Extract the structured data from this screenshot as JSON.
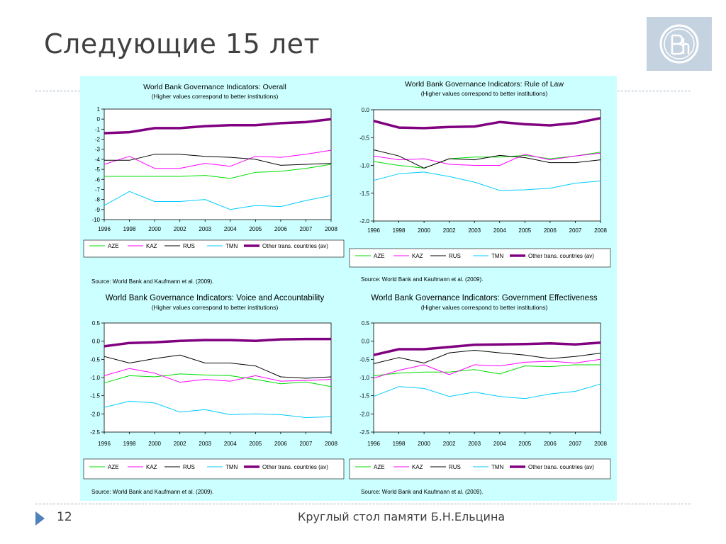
{
  "slide": {
    "title": "Следующие 15 лет",
    "page_number": "12",
    "footer": "Круглый стол памяти Б.Н.Ельцина"
  },
  "colors": {
    "panel": "#ccffff",
    "AZE": "#00dd00",
    "KAZ": "#ff00ff",
    "RUS": "#000000",
    "TMN": "#00ccff",
    "AV": "#800080"
  },
  "chart_data": [
    {
      "type": "line",
      "title": "World Bank Governance Indicators: Overall",
      "subtitle": "(Higher values correspond to better institutions)",
      "x": [
        "1996",
        "1998",
        "2000",
        "2002",
        "2003",
        "2004",
        "2005",
        "2006",
        "2007",
        "2008"
      ],
      "ylim": [
        -10,
        1
      ],
      "yticks": [
        "1",
        "0",
        "-1",
        "-2",
        "-3",
        "-4",
        "-5",
        "-6",
        "-7",
        "-8",
        "-9",
        "-10"
      ],
      "source": "Source: World Bank and Kaufmann et al. (2009).",
      "series": [
        {
          "name": "AZE",
          "values": [
            -5.7,
            -5.7,
            -5.7,
            -5.7,
            -5.6,
            -5.9,
            -5.3,
            -5.2,
            -4.9,
            -4.5
          ]
        },
        {
          "name": "KAZ",
          "values": [
            -4.5,
            -3.7,
            -4.9,
            -4.9,
            -4.4,
            -4.7,
            -3.7,
            -3.8,
            -3.5,
            -3.1
          ]
        },
        {
          "name": "RUS",
          "values": [
            -4.1,
            -4.1,
            -3.5,
            -3.5,
            -3.7,
            -3.8,
            -4.0,
            -4.6,
            -4.5,
            -4.4
          ]
        },
        {
          "name": "TMN",
          "values": [
            -8.6,
            -7.2,
            -8.2,
            -8.2,
            -8.0,
            -9.0,
            -8.6,
            -8.7,
            -8.1,
            -7.6
          ]
        },
        {
          "name": "Other trans. countries (av)",
          "values": [
            -1.4,
            -1.3,
            -0.9,
            -0.9,
            -0.7,
            -0.6,
            -0.6,
            -0.4,
            -0.3,
            0.0
          ]
        }
      ]
    },
    {
      "type": "line",
      "title": "World Bank Governance Indicators: Rule of Law",
      "subtitle": "(Higher values correspond to better institutions)",
      "x": [
        "1996",
        "1998",
        "2000",
        "2002",
        "2003",
        "2004",
        "2005",
        "2006",
        "2007",
        "2008"
      ],
      "ylim": [
        -2.0,
        0.0
      ],
      "yticks": [
        "0.0",
        "-0.5",
        "-1.0",
        "-1.5",
        "-2.0"
      ],
      "source": "Source: World Bank and Kaufmann et al. (2009).",
      "series": [
        {
          "name": "AZE",
          "values": [
            -0.93,
            -1.0,
            -1.05,
            -0.88,
            -0.85,
            -0.85,
            -0.82,
            -0.88,
            -0.83,
            -0.76
          ]
        },
        {
          "name": "KAZ",
          "values": [
            -0.83,
            -0.9,
            -0.88,
            -0.98,
            -1.0,
            -1.0,
            -0.8,
            -0.9,
            -0.83,
            -0.78
          ]
        },
        {
          "name": "RUS",
          "values": [
            -0.72,
            -0.83,
            -1.05,
            -0.88,
            -0.9,
            -0.82,
            -0.86,
            -0.95,
            -0.95,
            -0.9
          ]
        },
        {
          "name": "TMN",
          "values": [
            -1.27,
            -1.15,
            -1.12,
            -1.2,
            -1.3,
            -1.45,
            -1.44,
            -1.41,
            -1.32,
            -1.28
          ]
        },
        {
          "name": "Other trans. countries (av)",
          "values": [
            -0.2,
            -0.32,
            -0.33,
            -0.31,
            -0.3,
            -0.22,
            -0.26,
            -0.28,
            -0.24,
            -0.15
          ]
        }
      ]
    },
    {
      "type": "line",
      "title": "World Bank Governance Indicators: Voice and Accountability",
      "subtitle": "(Higher values correspond to better institutions)",
      "x": [
        "1996",
        "1998",
        "2000",
        "2002",
        "2003",
        "2004",
        "2005",
        "2006",
        "2007",
        "2008"
      ],
      "ylim": [
        -2.5,
        0.5
      ],
      "yticks": [
        "0.5",
        "0.0",
        "-0.5",
        "-1.0",
        "-1.5",
        "-2.0",
        "-2.5"
      ],
      "source": "Source: World Bank and Kaufmann et al. (2009).",
      "series": [
        {
          "name": "AZE",
          "values": [
            -1.15,
            -0.95,
            -0.98,
            -0.9,
            -0.93,
            -0.95,
            -1.05,
            -1.17,
            -1.12,
            -1.25
          ]
        },
        {
          "name": "KAZ",
          "values": [
            -0.95,
            -0.75,
            -0.88,
            -1.13,
            -1.05,
            -1.1,
            -0.95,
            -1.1,
            -1.08,
            -1.05
          ]
        },
        {
          "name": "RUS",
          "values": [
            -0.42,
            -0.6,
            -0.48,
            -0.38,
            -0.6,
            -0.6,
            -0.68,
            -0.98,
            -1.02,
            -0.98
          ]
        },
        {
          "name": "TMN",
          "values": [
            -1.82,
            -1.65,
            -1.7,
            -1.95,
            -1.88,
            -2.02,
            -2.0,
            -2.02,
            -2.1,
            -2.08
          ]
        },
        {
          "name": "Other trans. countries (av)",
          "values": [
            -0.14,
            -0.05,
            -0.03,
            0.01,
            0.03,
            0.03,
            0.01,
            0.05,
            0.06,
            0.06
          ]
        }
      ]
    },
    {
      "type": "line",
      "title": "World Bank Governance Indicators: Government Effectiveness",
      "subtitle": "(Higher values correspond to better institutions)",
      "x": [
        "1996",
        "1998",
        "2000",
        "2002",
        "2003",
        "2004",
        "2005",
        "2006",
        "2007",
        "2008"
      ],
      "ylim": [
        -2.5,
        0.5
      ],
      "yticks": [
        "0.5",
        "0.0",
        "-0.5",
        "-1.0",
        "-1.5",
        "-2.0",
        "-2.5"
      ],
      "source": "Source: World Bank and Kaufmann et al. (2009).",
      "series": [
        {
          "name": "AZE",
          "values": [
            -0.95,
            -0.88,
            -0.85,
            -0.85,
            -0.78,
            -0.9,
            -0.68,
            -0.7,
            -0.65,
            -0.65
          ]
        },
        {
          "name": "KAZ",
          "values": [
            -1.02,
            -0.8,
            -0.65,
            -0.92,
            -0.65,
            -0.68,
            -0.58,
            -0.55,
            -0.6,
            -0.5
          ]
        },
        {
          "name": "RUS",
          "values": [
            -0.62,
            -0.45,
            -0.6,
            -0.32,
            -0.25,
            -0.32,
            -0.38,
            -0.48,
            -0.42,
            -0.33
          ]
        },
        {
          "name": "TMN",
          "values": [
            -1.52,
            -1.25,
            -1.3,
            -1.52,
            -1.4,
            -1.52,
            -1.58,
            -1.45,
            -1.38,
            -1.18
          ]
        },
        {
          "name": "Other trans. countries (av)",
          "values": [
            -0.38,
            -0.22,
            -0.22,
            -0.16,
            -0.1,
            -0.09,
            -0.08,
            -0.06,
            -0.09,
            -0.04
          ]
        }
      ]
    }
  ]
}
